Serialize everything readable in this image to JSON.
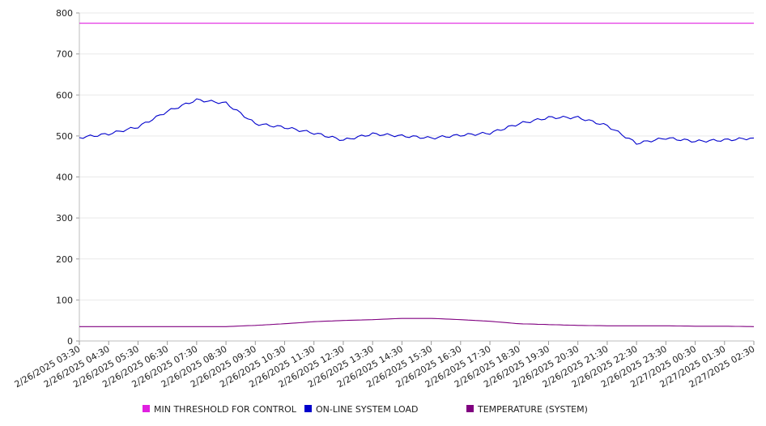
{
  "chart_data": {
    "type": "line",
    "title": "",
    "xlabel": "",
    "ylabel": "",
    "ylim": [
      0,
      800
    ],
    "yticks": [
      0,
      100,
      200,
      300,
      400,
      500,
      600,
      700,
      800
    ],
    "grid": true,
    "legend_position": "bottom",
    "x": [
      "2/26/2025 03:30",
      "2/26/2025 04:30",
      "2/26/2025 05:30",
      "2/26/2025 06:30",
      "2/26/2025 07:30",
      "2/26/2025 08:30",
      "2/26/2025 09:30",
      "2/26/2025 10:30",
      "2/26/2025 11:30",
      "2/26/2025 12:30",
      "2/26/2025 13:30",
      "2/26/2025 14:30",
      "2/26/2025 15:30",
      "2/26/2025 16:30",
      "2/26/2025 17:30",
      "2/26/2025 18:30",
      "2/26/2025 19:30",
      "2/26/2025 20:30",
      "2/26/2025 21:30",
      "2/26/2025 22:30",
      "2/26/2025 23:30",
      "2/27/2025 00:30",
      "2/27/2025 01:30",
      "2/27/2025 02:30"
    ],
    "series": [
      {
        "name": "MIN THRESHOLD FOR CONTROL",
        "color": "#e020e0",
        "values": [
          775,
          775,
          775,
          775,
          775,
          775,
          775,
          775,
          775,
          775,
          775,
          775,
          775,
          775,
          775,
          775,
          775,
          775,
          775,
          775,
          775,
          775,
          775,
          775
        ]
      },
      {
        "name": "ON-LINE SYSTEM LOAD",
        "color": "#0000cc",
        "values": [
          496,
          505,
          522,
          560,
          588,
          580,
          530,
          521,
          507,
          490,
          505,
          500,
          495,
          502,
          507,
          530,
          545,
          545,
          525,
          482,
          495,
          487,
          490,
          495
        ]
      },
      {
        "name": "TEMPERATURE (SYSTEM)",
        "color": "#800080",
        "values": [
          35,
          35,
          35,
          35,
          35,
          35,
          38,
          42,
          47,
          50,
          52,
          55,
          55,
          52,
          48,
          42,
          40,
          38,
          37,
          37,
          37,
          36,
          36,
          35
        ]
      }
    ]
  }
}
